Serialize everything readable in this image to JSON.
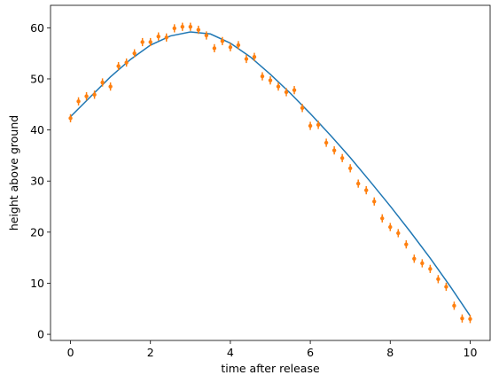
{
  "chart_data": {
    "type": "scatter",
    "title": "",
    "xlabel": "time after release",
    "ylabel": "height above ground",
    "xlim": [
      -0.5,
      10.5
    ],
    "ylim": [
      -1.2,
      64.4
    ],
    "x_ticks": [
      0,
      2,
      4,
      6,
      8,
      10
    ],
    "y_ticks": [
      0,
      10,
      20,
      30,
      40,
      50,
      60
    ],
    "grid": false,
    "legend": "none",
    "colors": {
      "fit": "#1f77b4",
      "data": "#ff7f0e"
    },
    "series": [
      {
        "kind": "line",
        "x": [
          0,
          0.5,
          1,
          1.5,
          2,
          2.5,
          3,
          3.5,
          4,
          4.5,
          5,
          5.5,
          6,
          6.5,
          7,
          7.5,
          8,
          8.5,
          9,
          9.5,
          10
        ],
        "y": [
          42.6,
          46.5,
          50.4,
          53.8,
          56.6,
          58.4,
          59.2,
          58.8,
          57.0,
          54.3,
          50.9,
          47.2,
          43.2,
          39.0,
          34.6,
          29.9,
          25.1,
          20.1,
          14.9,
          9.4,
          3.6
        ]
      },
      {
        "kind": "errorbar",
        "yerr": 0.8,
        "x": [
          0,
          0.2,
          0.4,
          0.6,
          0.8,
          1.0,
          1.2,
          1.4,
          1.6,
          1.8,
          2.0,
          2.2,
          2.4,
          2.6,
          2.8,
          3.0,
          3.2,
          3.4,
          3.6,
          3.8,
          4.0,
          4.2,
          4.4,
          4.6,
          4.8,
          5.0,
          5.2,
          5.4,
          5.6,
          5.8,
          6.0,
          6.2,
          6.4,
          6.6,
          6.8,
          7.0,
          7.2,
          7.4,
          7.6,
          7.8,
          8.0,
          8.2,
          8.4,
          8.6,
          8.8,
          9.0,
          9.2,
          9.4,
          9.6,
          9.8,
          10.0
        ],
        "y": [
          42.3,
          45.6,
          46.6,
          46.9,
          49.3,
          48.5,
          52.5,
          53.2,
          55.0,
          57.2,
          57.2,
          58.3,
          58.1,
          59.9,
          60.2,
          60.2,
          59.6,
          58.5,
          56.0,
          57.4,
          56.2,
          56.6,
          53.9,
          54.3,
          50.5,
          49.7,
          48.5,
          47.4,
          47.8,
          44.3,
          40.8,
          41.0,
          37.5,
          36.0,
          34.5,
          32.5,
          29.5,
          28.2,
          26.0,
          22.7,
          21.0,
          19.8,
          17.6,
          14.8,
          13.9,
          12.8,
          10.8,
          9.3,
          5.6,
          3.1,
          3.0
        ]
      }
    ]
  }
}
